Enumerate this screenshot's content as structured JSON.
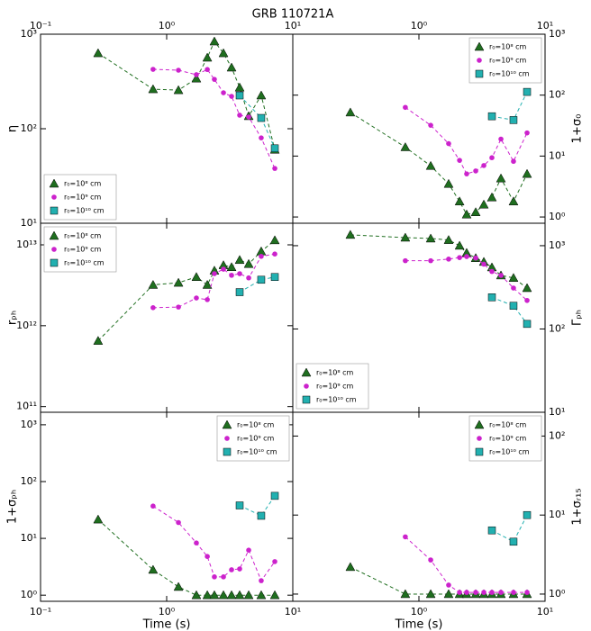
{
  "chart_data": [
    {
      "type": "line",
      "title": "GRB 110721A",
      "ylabel": "η",
      "log": true,
      "yaxis_side": "left",
      "xtick_labels": "top",
      "legend": "lower left",
      "xlim": [
        0.1,
        10
      ],
      "xticks": [
        {
          "value": 0.1,
          "label": "10⁻¹"
        },
        {
          "value": 1,
          "label": "10⁰"
        },
        {
          "value": 10,
          "label": "10¹"
        }
      ],
      "ylim": [
        10,
        1000
      ],
      "yticks": [
        {
          "value": 10,
          "label": "10¹"
        },
        {
          "value": 100,
          "label": "10²"
        },
        {
          "value": 1000,
          "label": "10³"
        }
      ],
      "series": [
        {
          "name": "r₀=10⁸ cm",
          "color": "#1f6e1f",
          "marker": "triangle",
          "x": [
            0.286,
            0.78,
            1.24,
            1.72,
            2.1,
            2.39,
            2.82,
            3.27,
            3.79,
            4.47,
            5.62,
            7.2
          ],
          "values": [
            630,
            262,
            256,
            340,
            565,
            838,
            630,
            444,
            273,
            136,
            225,
            60
          ]
        },
        {
          "name": "r₀=10⁹ cm",
          "color": "#cc22cc",
          "marker": "circle",
          "x": [
            0.78,
            1.24,
            1.72,
            2.1,
            2.39,
            2.82,
            3.27,
            3.79,
            4.47,
            5.62,
            7.2
          ],
          "values": [
            425,
            416,
            373,
            423,
            333,
            240,
            220,
            139,
            133,
            80,
            38
          ]
        },
        {
          "name": "r₀=10¹⁰ cm",
          "color": "#22b0b0",
          "marker": "square",
          "x": [
            3.79,
            5.62,
            7.2
          ],
          "values": [
            225,
            130,
            62
          ]
        }
      ]
    },
    {
      "type": "line",
      "ylabel": "1+σ₀",
      "log": true,
      "yaxis_side": "right",
      "xtick_labels": "top",
      "legend": "upper right",
      "xlim": [
        0.1,
        10
      ],
      "xticks": [
        {
          "value": 1,
          "label": "10⁰"
        },
        {
          "value": 10,
          "label": "10¹"
        }
      ],
      "ylim": [
        0.79,
        1000
      ],
      "yticks": [
        {
          "value": 1,
          "label": "10⁰"
        },
        {
          "value": 10,
          "label": "10¹"
        },
        {
          "value": 100,
          "label": "10²"
        },
        {
          "value": 1000,
          "label": "10³"
        }
      ],
      "series": [
        {
          "name": "r₀=10⁸ cm",
          "color": "#1f6e1f",
          "marker": "triangle",
          "x": [
            0.286,
            0.78,
            1.24,
            1.72,
            2.1,
            2.39,
            2.82,
            3.27,
            3.79,
            4.47,
            5.62,
            7.2
          ],
          "values": [
            52,
            14,
            6.9,
            3.5,
            1.8,
            1.1,
            1.2,
            1.6,
            2.1,
            4.3,
            1.8,
            5.1
          ]
        },
        {
          "name": "r₀=10⁹ cm",
          "color": "#cc22cc",
          "marker": "circle",
          "x": [
            0.78,
            1.24,
            1.72,
            2.1,
            2.39,
            2.82,
            3.27,
            3.79,
            4.47,
            5.62,
            7.2
          ],
          "values": [
            63,
            32,
            16,
            8.5,
            5.1,
            5.7,
            7,
            9.4,
            19,
            8.2,
            24
          ]
        },
        {
          "name": "r₀=10¹⁰ cm",
          "color": "#22b0b0",
          "marker": "square",
          "x": [
            3.79,
            5.62,
            7.2
          ],
          "values": [
            45,
            39,
            113
          ]
        }
      ]
    },
    {
      "type": "line",
      "ylabel": "rₚₕ",
      "log": true,
      "yaxis_side": "left",
      "xtick_labels": "none",
      "legend": "upper left",
      "xlim": [
        0.1,
        10
      ],
      "xticks": [
        {
          "value": 0.1,
          "label": "10⁻¹"
        },
        {
          "value": 1,
          "label": "10⁰"
        },
        {
          "value": 10,
          "label": "10¹"
        }
      ],
      "ylim": [
        85000000000.0,
        18500000000000.0
      ],
      "yticks": [
        {
          "value": 100000000000.0,
          "label": "10¹¹"
        },
        {
          "value": 1000000000000.0,
          "label": "10¹²"
        },
        {
          "value": 10000000000000.0,
          "label": "10¹³"
        }
      ],
      "series": [
        {
          "name": "r₀=10⁸ cm",
          "color": "#1f6e1f",
          "marker": "triangle",
          "x": [
            0.286,
            0.78,
            1.24,
            1.72,
            2.1,
            2.39,
            2.82,
            3.27,
            3.79,
            4.47,
            5.62,
            7.2
          ],
          "values": [
            650000000000.0,
            3200000000000.0,
            3400000000000.0,
            4000000000000.0,
            3200000000000.0,
            4800000000000.0,
            5600000000000.0,
            5300000000000.0,
            6500000000000.0,
            5800000000000.0,
            8300000000000.0,
            11400000000000.0
          ]
        },
        {
          "name": "r₀=10⁹ cm",
          "color": "#cc22cc",
          "marker": "circle",
          "x": [
            0.78,
            1.24,
            1.72,
            2.1,
            2.39,
            2.82,
            3.27,
            3.79,
            4.47,
            5.62,
            7.2
          ],
          "values": [
            1670000000000.0,
            1700000000000.0,
            2200000000000.0,
            2100000000000.0,
            4400000000000.0,
            5000000000000.0,
            4200000000000.0,
            4400000000000.0,
            3900000000000.0,
            7200000000000.0,
            7700000000000.0
          ]
        },
        {
          "name": "r₀=10¹⁰ cm",
          "color": "#22b0b0",
          "marker": "square",
          "x": [
            3.79,
            5.62,
            7.2
          ],
          "values": [
            2600000000000.0,
            3700000000000.0,
            4000000000000.0
          ]
        }
      ]
    },
    {
      "type": "line",
      "ylabel": "Γₚₕ",
      "log": true,
      "yaxis_side": "right",
      "xtick_labels": "none",
      "legend": "lower left",
      "xlim": [
        0.1,
        10
      ],
      "xticks": [
        {
          "value": 1,
          "label": "10⁰"
        },
        {
          "value": 10,
          "label": "10¹"
        }
      ],
      "ylim": [
        10,
        1860
      ],
      "yticks": [
        {
          "value": 10,
          "label": "10¹"
        },
        {
          "value": 100,
          "label": "10²"
        },
        {
          "value": 1000,
          "label": "10³"
        }
      ],
      "series": [
        {
          "name": "r₀=10⁸ cm",
          "color": "#1f6e1f",
          "marker": "triangle",
          "x": [
            0.286,
            0.78,
            1.24,
            1.72,
            2.1,
            2.39,
            2.82,
            3.27,
            3.79,
            4.47,
            5.62,
            7.2
          ],
          "values": [
            1350,
            1250,
            1220,
            1170,
            1000,
            820,
            710,
            640,
            550,
            440,
            410,
            310
          ]
        },
        {
          "name": "r₀=10⁹ cm",
          "color": "#cc22cc",
          "marker": "circle",
          "x": [
            0.78,
            1.24,
            1.72,
            2.1,
            2.39,
            2.82,
            3.27,
            3.79,
            4.47,
            5.62,
            7.2
          ],
          "values": [
            660,
            660,
            690,
            720,
            740,
            710,
            600,
            490,
            440,
            310,
            220
          ]
        },
        {
          "name": "r₀=10¹⁰ cm",
          "color": "#22b0b0",
          "marker": "square",
          "x": [
            3.79,
            5.62,
            7.2
          ],
          "values": [
            240,
            190,
            115
          ]
        }
      ]
    },
    {
      "type": "line",
      "ylabel": "1+σₚₕ",
      "xlabel": "Time (s)",
      "log": true,
      "yaxis_side": "left",
      "xtick_labels": "bottom",
      "legend": "upper right",
      "xlim": [
        0.1,
        10
      ],
      "xticks": [
        {
          "value": 0.1,
          "label": "10⁻¹"
        },
        {
          "value": 1,
          "label": "10⁰"
        },
        {
          "value": 10,
          "label": "10¹"
        }
      ],
      "ylim": [
        0.78,
        1660
      ],
      "yticks": [
        {
          "value": 1,
          "label": "10⁰"
        },
        {
          "value": 10,
          "label": "10¹"
        },
        {
          "value": 100,
          "label": "10²"
        },
        {
          "value": 1000,
          "label": "10³"
        }
      ],
      "series": [
        {
          "name": "r₀=10⁸ cm",
          "color": "#1f6e1f",
          "marker": "triangle",
          "x": [
            0.286,
            0.78,
            1.24,
            1.72,
            2.1,
            2.39,
            2.82,
            3.27,
            3.79,
            4.47,
            5.62,
            7.2
          ],
          "values": [
            21.5,
            2.8,
            1.4,
            1,
            1,
            1,
            1,
            1,
            1,
            1,
            1,
            1
          ]
        },
        {
          "name": "r₀=10⁹ cm",
          "color": "#cc22cc",
          "marker": "circle",
          "x": [
            0.78,
            1.24,
            1.72,
            2.1,
            2.39,
            2.82,
            3.27,
            3.79,
            4.47,
            5.62,
            7.2
          ],
          "values": [
            37,
            19,
            8.3,
            4.8,
            2.1,
            2.1,
            2.8,
            2.9,
            6.2,
            1.8,
            3.9
          ]
        },
        {
          "name": "r₀=10¹⁰ cm",
          "color": "#22b0b0",
          "marker": "square",
          "x": [
            3.79,
            5.62,
            7.2
          ],
          "values": [
            38,
            25,
            56
          ]
        }
      ]
    },
    {
      "type": "line",
      "ylabel": "1+σᵣ₁₅",
      "xlabel": "Time (s)",
      "log": true,
      "yaxis_side": "right",
      "xtick_labels": "bottom",
      "legend": "upper right",
      "xlim": [
        0.1,
        10
      ],
      "xticks": [
        {
          "value": 1,
          "label": "10⁰"
        },
        {
          "value": 10,
          "label": "10¹"
        }
      ],
      "ylim": [
        0.81,
        200
      ],
      "yticks": [
        {
          "value": 1,
          "label": "10⁰"
        },
        {
          "value": 10,
          "label": "10¹"
        },
        {
          "value": 100,
          "label": "10²"
        }
      ],
      "series": [
        {
          "name": "r₀=10⁸ cm",
          "color": "#1f6e1f",
          "marker": "triangle",
          "x": [
            0.286,
            0.78,
            1.24,
            1.72,
            2.1,
            2.39,
            2.82,
            3.27,
            3.79,
            4.47,
            5.62,
            7.2
          ],
          "values": [
            2.2,
            1,
            1,
            1,
            1,
            1,
            1,
            1,
            1,
            1,
            1,
            1
          ]
        },
        {
          "name": "r₀=10⁹ cm",
          "color": "#cc22cc",
          "marker": "circle",
          "x": [
            0.78,
            1.24,
            1.72,
            2.1,
            2.39,
            2.82,
            3.27,
            3.79,
            4.47,
            5.62,
            7.2
          ],
          "values": [
            5.3,
            2.7,
            1.3,
            1.05,
            1.05,
            1.05,
            1.05,
            1.05,
            1.05,
            1.05,
            1.05
          ]
        },
        {
          "name": "r₀=10¹⁰ cm",
          "color": "#22b0b0",
          "marker": "square",
          "x": [
            3.79,
            5.62,
            7.2
          ],
          "values": [
            6.4,
            4.6,
            10
          ]
        }
      ]
    }
  ]
}
